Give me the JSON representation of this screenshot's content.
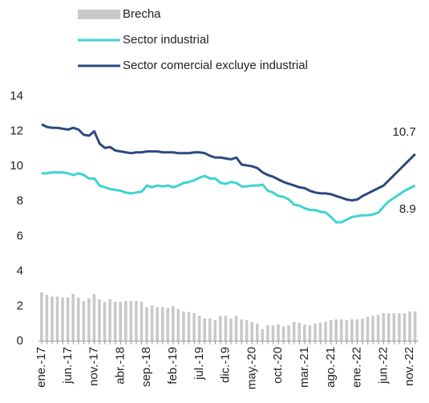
{
  "chart_data": {
    "type": "bar_line",
    "categories": [
      "ene.-17",
      null,
      null,
      null,
      null,
      "jun.-17",
      null,
      null,
      null,
      null,
      "nov.-17",
      null,
      null,
      null,
      null,
      "abr.-18",
      null,
      null,
      null,
      null,
      "sep.-18",
      null,
      null,
      null,
      null,
      "feb.-19",
      null,
      null,
      null,
      null,
      "jul.-19",
      null,
      null,
      null,
      null,
      "dic.-19",
      null,
      null,
      null,
      null,
      "may.-20",
      null,
      null,
      null,
      null,
      "oct.-20",
      null,
      null,
      null,
      null,
      "mar.-21",
      null,
      null,
      null,
      null,
      "ago.-21",
      null,
      null,
      null,
      null,
      "ene.-22",
      null,
      null,
      null,
      null,
      "jun.-22",
      null,
      null,
      null,
      null,
      "nov.-22",
      null
    ],
    "series": [
      {
        "name": "Brecha",
        "kind": "bar",
        "color": "#c9c9c9",
        "values": [
          2.8,
          2.65,
          2.55,
          2.55,
          2.5,
          2.5,
          2.7,
          2.5,
          2.3,
          2.45,
          2.7,
          2.4,
          2.25,
          2.4,
          2.25,
          2.25,
          2.3,
          2.3,
          2.3,
          2.25,
          1.95,
          2.05,
          1.95,
          1.95,
          1.9,
          2.0,
          1.85,
          1.7,
          1.65,
          1.6,
          1.45,
          1.3,
          1.3,
          1.2,
          1.45,
          1.45,
          1.3,
          1.45,
          1.25,
          1.2,
          1.1,
          1.0,
          0.7,
          0.9,
          0.9,
          0.95,
          0.85,
          0.9,
          1.1,
          1.05,
          0.95,
          0.9,
          1.0,
          1.05,
          1.1,
          1.2,
          1.25,
          1.25,
          1.2,
          1.25,
          1.25,
          1.3,
          1.4,
          1.45,
          1.5,
          1.6,
          1.6,
          1.6,
          1.6,
          1.6,
          1.7,
          1.7
        ]
      },
      {
        "name": "Sector industrial",
        "kind": "line",
        "color": "#3fd3d3",
        "values": [
          9.6,
          9.6,
          9.65,
          9.65,
          9.65,
          9.6,
          9.5,
          9.6,
          9.5,
          9.3,
          9.3,
          8.9,
          8.8,
          8.7,
          8.65,
          8.6,
          8.5,
          8.45,
          8.5,
          8.55,
          8.9,
          8.8,
          8.9,
          8.85,
          8.9,
          8.8,
          8.9,
          9.05,
          9.1,
          9.2,
          9.35,
          9.45,
          9.3,
          9.3,
          9.05,
          9.0,
          9.1,
          9.05,
          8.85,
          8.85,
          8.9,
          8.9,
          8.95,
          8.6,
          8.5,
          8.3,
          8.25,
          8.1,
          7.8,
          7.75,
          7.6,
          7.5,
          7.5,
          7.4,
          7.35,
          7.1,
          6.8,
          6.8,
          6.95,
          7.1,
          7.15,
          7.2,
          7.2,
          7.25,
          7.35,
          7.7,
          8.0,
          8.2,
          8.4,
          8.6,
          8.75,
          8.9
        ]
      },
      {
        "name": "Sector comercial excluye industrial",
        "kind": "line",
        "color": "#2b4a80",
        "values": [
          12.4,
          12.25,
          12.2,
          12.2,
          12.15,
          12.1,
          12.2,
          12.1,
          11.8,
          11.75,
          12.0,
          11.3,
          11.05,
          11.1,
          10.9,
          10.85,
          10.8,
          10.75,
          10.8,
          10.8,
          10.85,
          10.85,
          10.85,
          10.8,
          10.8,
          10.8,
          10.75,
          10.75,
          10.75,
          10.8,
          10.8,
          10.75,
          10.6,
          10.5,
          10.5,
          10.45,
          10.4,
          10.5,
          10.1,
          10.05,
          10.0,
          9.9,
          9.65,
          9.5,
          9.4,
          9.25,
          9.1,
          9.0,
          8.9,
          8.8,
          8.75,
          8.6,
          8.5,
          8.45,
          8.45,
          8.4,
          8.3,
          8.2,
          8.1,
          8.05,
          8.1,
          8.3,
          8.45,
          8.6,
          8.75,
          8.9,
          9.2,
          9.5,
          9.8,
          10.1,
          10.4,
          10.7
        ]
      }
    ],
    "ylim": [
      0,
      14
    ],
    "yticks": [
      0,
      2,
      4,
      6,
      8,
      10,
      12,
      14
    ],
    "grid": false
  }
}
